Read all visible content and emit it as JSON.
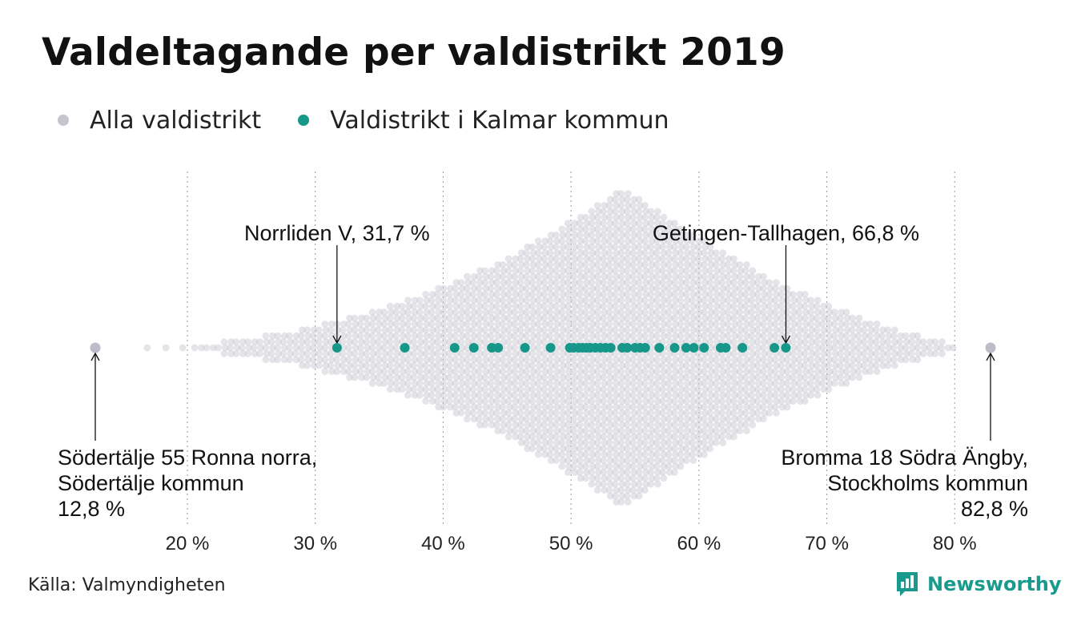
{
  "title": "Valdeltagande per valdistrikt 2019",
  "legend": [
    {
      "label": "Alla valdistrikt",
      "color": "#c6c5cf"
    },
    {
      "label": "Valdistrikt i Kalmar kommun",
      "color": "#16978a"
    }
  ],
  "source": "Källa: Valmyndigheten",
  "brand": {
    "name": "Newsworthy",
    "color": "#1a9a8c"
  },
  "chart_data": {
    "type": "scatter",
    "subtype": "beeswarm",
    "xlim": [
      12.8,
      82.8
    ],
    "xticks": [
      20,
      30,
      40,
      50,
      60,
      70,
      80
    ],
    "xtick_labels": [
      "20 %",
      "30 %",
      "40 %",
      "50 %",
      "60 %",
      "70 %",
      "80 %"
    ],
    "grid": "vertical dotted",
    "series": [
      {
        "name": "Alla valdistrikt",
        "color": "#c6c5cf",
        "distribution": "dense beeswarm, densest near 54 %, extremes 12,8 % and 82,8 %",
        "min": 12.8,
        "max": 82.8,
        "peak": 54
      },
      {
        "name": "Valdistrikt i Kalmar kommun",
        "color": "#16978a",
        "values": [
          31.7,
          37.0,
          40.9,
          42.4,
          43.8,
          44.3,
          46.4,
          48.4,
          49.9,
          50.2,
          50.6,
          50.9,
          51.2,
          51.5,
          51.9,
          52.3,
          52.7,
          53.1,
          54.0,
          54.4,
          55.0,
          55.4,
          55.8,
          56.9,
          58.1,
          59.0,
          59.6,
          60.4,
          61.7,
          62.1,
          63.4,
          65.9,
          66.8
        ]
      }
    ],
    "annotations": [
      {
        "text": "Norrliden V, 31,7 %",
        "x": 31.7,
        "position": "above"
      },
      {
        "text": "Getingen-Tallhagen, 66,8 %",
        "x": 66.8,
        "position": "above"
      },
      {
        "lines": [
          "Södertälje 55 Ronna norra,",
          "Södertälje kommun",
          "12,8 %"
        ],
        "x": 12.8,
        "position": "below-left"
      },
      {
        "lines": [
          "Bromma 18 Södra Ängby,",
          "Stockholms kommun",
          "82,8 %"
        ],
        "x": 82.8,
        "position": "below-right"
      }
    ]
  }
}
